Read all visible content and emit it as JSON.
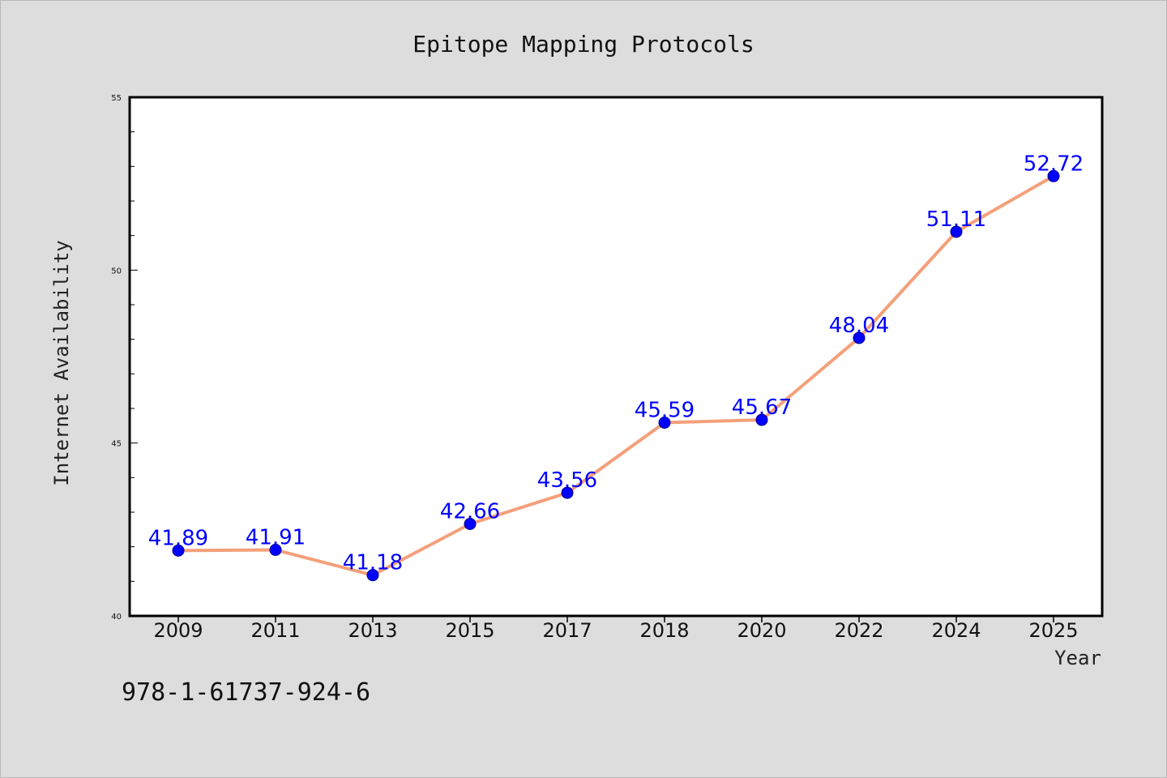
{
  "chart_data": {
    "type": "line",
    "title": "Epitope Mapping Protocols",
    "xlabel": "Year",
    "ylabel": "Internet Availability",
    "categories": [
      "2009",
      "2011",
      "2013",
      "2015",
      "2017",
      "2018",
      "2020",
      "2022",
      "2024",
      "2025"
    ],
    "series": [
      {
        "values": [
          41.89,
          41.91,
          41.18,
          42.66,
          43.56,
          45.59,
          45.67,
          48.04,
          51.11,
          52.72
        ],
        "labels": [
          "41.89",
          "41.91",
          "41.18",
          "42.66",
          "43.56",
          "45.59",
          "45.67",
          "48.04",
          "51.11",
          "52.72"
        ]
      }
    ],
    "ylim": [
      40,
      55
    ],
    "yticks": [
      "40",
      "45",
      "50",
      "55"
    ],
    "grid": false,
    "colors": {
      "line": "#f4a07a",
      "marker": "#0000ff",
      "label": "#0000ff",
      "background": "#dddddd",
      "plot_background": "#ffffff"
    }
  },
  "footer": {
    "isbn": "978-1-61737-924-6"
  }
}
